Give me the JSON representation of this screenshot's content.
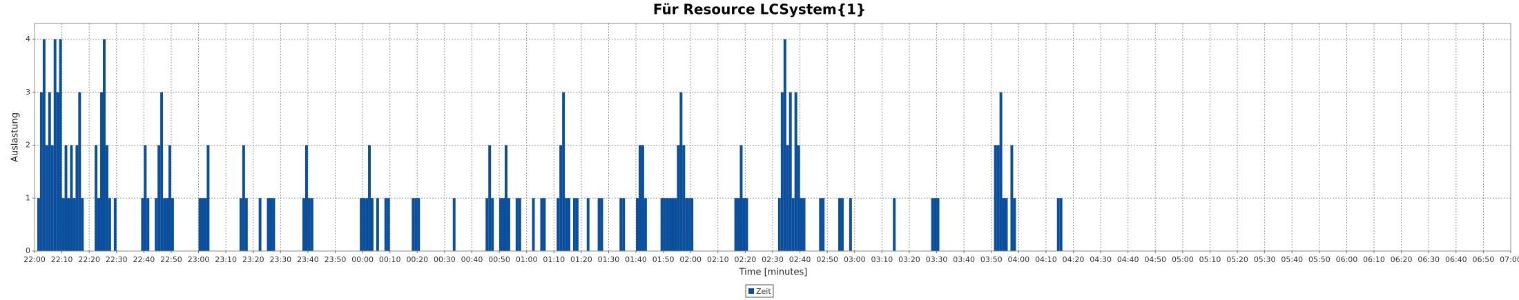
{
  "chart_data": {
    "type": "bar",
    "title": "Für Resource LCSystem{1}",
    "x_label": "Time [minutes]",
    "y_label": "Auslastung",
    "color": "#0b4f9c",
    "grid": true,
    "legend": "bottom",
    "series_name": "Zeit",
    "xlim": [
      "22:00",
      "07:00"
    ],
    "xticks": [
      "22:00",
      "22:10",
      "22:20",
      "22:30",
      "22:40",
      "22:50",
      "23:00",
      "23:10",
      "23:20",
      "23:30",
      "23:40",
      "23:50",
      "00:00",
      "00:10",
      "00:20",
      "00:30",
      "00:40",
      "00:50",
      "01:00",
      "01:10",
      "01:20",
      "01:30",
      "01:40",
      "01:50",
      "02:00",
      "02:10",
      "02:20",
      "02:30",
      "02:40",
      "02:50",
      "03:00",
      "03:10",
      "03:20",
      "03:30",
      "03:40",
      "03:50",
      "04:00",
      "04:10",
      "04:20",
      "04:30",
      "04:40",
      "04:50",
      "05:00",
      "05:10",
      "05:20",
      "05:30",
      "05:40",
      "05:50",
      "06:00",
      "06:10",
      "06:20",
      "06:30",
      "06:40",
      "06:50",
      "07:00"
    ],
    "ylim": [
      0,
      4.3
    ],
    "yticks": [
      0,
      1,
      2,
      3,
      4
    ],
    "x": [
      "22:01",
      "22:02",
      "22:03",
      "22:04",
      "22:05",
      "22:06",
      "22:07",
      "22:08",
      "22:09",
      "22:10",
      "22:11",
      "22:12",
      "22:13",
      "22:14",
      "22:15",
      "22:16",
      "22:17",
      "22:22",
      "22:23",
      "22:24",
      "22:25",
      "22:26",
      "22:27",
      "22:29",
      "22:39",
      "22:40",
      "22:41",
      "22:44",
      "22:45",
      "22:46",
      "22:47",
      "22:48",
      "22:49",
      "22:50",
      "23:00",
      "23:01",
      "23:02",
      "23:03",
      "23:15",
      "23:16",
      "23:17",
      "23:22",
      "23:25",
      "23:26",
      "23:27",
      "23:38",
      "23:39",
      "23:40",
      "23:41",
      "23:59",
      "00:00",
      "00:01",
      "00:02",
      "00:03",
      "00:05",
      "00:08",
      "00:09",
      "00:18",
      "00:19",
      "00:20",
      "00:33",
      "00:45",
      "00:46",
      "00:47",
      "00:50",
      "00:51",
      "00:52",
      "00:53",
      "00:56",
      "00:57",
      "01:02",
      "01:05",
      "01:06",
      "01:11",
      "01:12",
      "01:13",
      "01:14",
      "01:15",
      "01:17",
      "01:18",
      "01:22",
      "01:26",
      "01:27",
      "01:34",
      "01:35",
      "01:40",
      "01:41",
      "01:42",
      "01:43",
      "01:49",
      "01:50",
      "01:51",
      "01:52",
      "01:53",
      "01:54",
      "01:55",
      "01:56",
      "01:57",
      "01:58",
      "01:59",
      "02:00",
      "02:16",
      "02:17",
      "02:18",
      "02:19",
      "02:20",
      "02:32",
      "02:33",
      "02:34",
      "02:35",
      "02:36",
      "02:37",
      "02:38",
      "02:39",
      "02:40",
      "02:41",
      "02:47",
      "02:48",
      "02:54",
      "02:55",
      "02:58",
      "03:14",
      "03:28",
      "03:29",
      "03:30",
      "03:51",
      "03:52",
      "03:53",
      "03:54",
      "03:55",
      "03:57",
      "03:58",
      "04:14",
      "04:15"
    ],
    "values": [
      1,
      3,
      4,
      2,
      3,
      2,
      4,
      3,
      4,
      1,
      2,
      1,
      2,
      1,
      2,
      3,
      1,
      2,
      1,
      3,
      4,
      2,
      1,
      1,
      1,
      2,
      1,
      1,
      2,
      3,
      1,
      1,
      2,
      1,
      1,
      1,
      1,
      2,
      1,
      2,
      1,
      1,
      1,
      1,
      1,
      1,
      2,
      1,
      1,
      1,
      1,
      1,
      2,
      1,
      1,
      1,
      1,
      1,
      1,
      1,
      1,
      1,
      2,
      1,
      1,
      1,
      2,
      1,
      1,
      1,
      1,
      1,
      1,
      1,
      2,
      3,
      1,
      1,
      1,
      1,
      1,
      1,
      1,
      1,
      1,
      1,
      2,
      2,
      1,
      1,
      1,
      1,
      1,
      1,
      1,
      2,
      3,
      2,
      1,
      1,
      1,
      1,
      1,
      2,
      1,
      1,
      1,
      3,
      4,
      2,
      3,
      1,
      3,
      2,
      1,
      1,
      1,
      1,
      1,
      1,
      1,
      1,
      1,
      1,
      1,
      2,
      2,
      3,
      1,
      1,
      2,
      1,
      1,
      1
    ]
  }
}
